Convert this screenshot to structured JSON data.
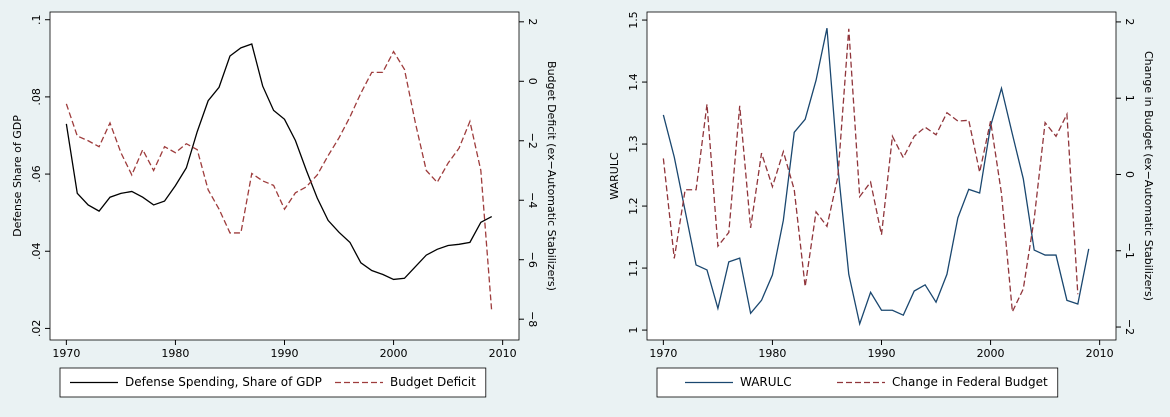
{
  "chart_data": [
    {
      "type": "line",
      "x": [
        1970,
        1971,
        1972,
        1973,
        1974,
        1975,
        1976,
        1977,
        1978,
        1979,
        1980,
        1981,
        1982,
        1983,
        1984,
        1985,
        1986,
        1987,
        1988,
        1989,
        1990,
        1991,
        1992,
        1993,
        1994,
        1995,
        1996,
        1997,
        1998,
        1999,
        2000,
        2001,
        2002,
        2003,
        2004,
        2005,
        2006,
        2007,
        2008,
        2009
      ],
      "series": [
        {
          "name": "Defense Spending, Share of GDP",
          "color": "#000000",
          "dash": "solid",
          "values": [
            0.073,
            0.055,
            0.052,
            0.0504,
            0.054,
            0.055,
            0.0555,
            0.054,
            0.052,
            0.053,
            0.057,
            0.0616,
            0.071,
            0.079,
            0.0825,
            0.0906,
            0.0927,
            0.0937,
            0.0828,
            0.0765,
            0.0742,
            0.0687,
            0.061,
            0.0538,
            0.048,
            0.0449,
            0.0423,
            0.037,
            0.035,
            0.034,
            0.0327,
            0.033,
            0.036,
            0.039,
            0.0405,
            0.0415,
            0.0418,
            0.0423,
            0.0475,
            0.049
          ]
        },
        {
          "name": "Budget Deficit",
          "color": "#9e3c3c",
          "dash": "dashed",
          "axis": "y2",
          "values": [
            -0.76,
            -1.84,
            -2.0,
            -2.2,
            -1.4,
            -2.4,
            -3.15,
            -2.3,
            -3.0,
            -2.2,
            -2.4,
            -2.1,
            -2.3,
            -3.65,
            -4.3,
            -5.1,
            -5.1,
            -3.1,
            -3.35,
            -3.5,
            -4.3,
            -3.75,
            -3.55,
            -3.15,
            -2.5,
            -1.9,
            -1.2,
            -0.4,
            0.3,
            0.3,
            1.0,
            0.4,
            -1.4,
            -3.0,
            -3.4,
            -2.75,
            -2.25,
            -1.35,
            -3.0,
            -7.75
          ]
        }
      ],
      "xlim": [
        1968.5,
        2011.5
      ],
      "xticks": [
        1970,
        1980,
        1990,
        2000,
        2010
      ],
      "ylim": [
        0.017,
        0.102
      ],
      "yticks": [
        {
          "value": 0.02,
          "label": ".02"
        },
        {
          "value": 0.04,
          "label": ".04"
        },
        {
          "value": 0.06,
          "label": ".06"
        },
        {
          "value": 0.08,
          "label": ".08"
        },
        {
          "value": 0.1,
          "label": ".1"
        }
      ],
      "y2lim": [
        -8.7,
        2.33
      ],
      "y2ticks": [
        {
          "value": -8,
          "label": "−8"
        },
        {
          "value": -6,
          "label": "−6"
        },
        {
          "value": -4,
          "label": "−4"
        },
        {
          "value": -2,
          "label": "−2"
        },
        0,
        2
      ],
      "ylabel": "Defense Share of GDP",
      "y2label": "Budget Deficit (ex−Automatic Stabilizers)",
      "legend_position": "bottom",
      "grid": false
    },
    {
      "type": "line",
      "x": [
        1970,
        1971,
        1972,
        1973,
        1974,
        1975,
        1976,
        1977,
        1978,
        1979,
        1980,
        1981,
        1982,
        1983,
        1984,
        1985,
        1986,
        1987,
        1988,
        1989,
        1990,
        1991,
        1992,
        1993,
        1994,
        1995,
        1996,
        1997,
        1998,
        1999,
        2000,
        2001,
        2002,
        2003,
        2004,
        2005,
        2006,
        2007,
        2008,
        2009
      ],
      "series": [
        {
          "name": "WARULC",
          "color": "#1a476f",
          "dash": "solid",
          "values": [
            1.347,
            1.279,
            1.192,
            1.105,
            1.097,
            1.035,
            1.11,
            1.116,
            1.027,
            1.048,
            1.089,
            1.177,
            1.319,
            1.34,
            1.403,
            1.487,
            1.263,
            1.09,
            1.01,
            1.061,
            1.032,
            1.032,
            1.024,
            1.063,
            1.073,
            1.045,
            1.09,
            1.181,
            1.227,
            1.221,
            1.329,
            1.39,
            1.316,
            1.244,
            1.129,
            1.121,
            1.121,
            1.048,
            1.042,
            1.131
          ]
        },
        {
          "name": "Change in Federal Budget",
          "color": "#90353b",
          "dash": "dashed",
          "axis": "y2",
          "values": [
            0.21,
            -1.1,
            -0.2,
            -0.2,
            0.92,
            -0.94,
            -0.76,
            0.9,
            -0.7,
            0.28,
            -0.16,
            0.3,
            -0.2,
            -1.47,
            -0.49,
            -0.68,
            -0.03,
            1.91,
            -0.29,
            -0.1,
            -0.79,
            0.5,
            0.22,
            0.5,
            0.62,
            0.52,
            0.81,
            0.7,
            0.71,
            0.03,
            0.7,
            -0.25,
            -1.8,
            -1.5,
            -0.58,
            0.68,
            0.5,
            0.79,
            -1.57,
            null
          ]
        }
      ],
      "xlim": [
        1968.5,
        2011.5
      ],
      "xticks": [
        1970,
        1980,
        1990,
        2000,
        2010
      ],
      "ylim": [
        0.984,
        1.513
      ],
      "yticks": [
        1,
        1.1,
        1.2,
        1.3,
        1.4,
        1.5
      ],
      "y2lim": [
        -2.17,
        2.13
      ],
      "y2ticks": [
        {
          "value": -2,
          "label": "−2"
        },
        {
          "value": -1,
          "label": "−1"
        },
        0,
        1,
        2
      ],
      "ylabel": "WARULC",
      "y2label": "Change in Budget (ex−Automatic Stabilizers)",
      "legend_position": "bottom",
      "grid": false
    }
  ]
}
